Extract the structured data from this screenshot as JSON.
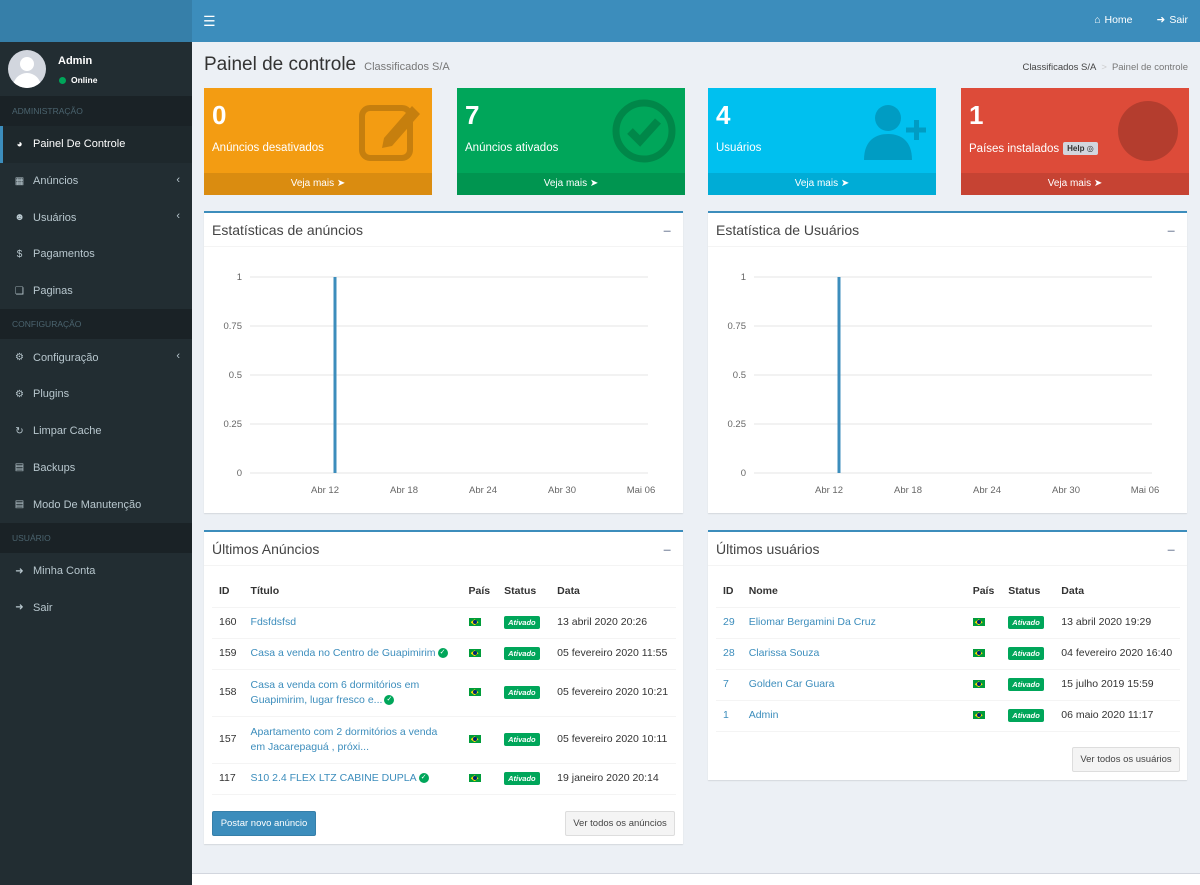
{
  "topbar": {
    "home_label": "Home",
    "exit_label": "Sair"
  },
  "user": {
    "name": "Admin",
    "status": "Online"
  },
  "sidebar": {
    "header_admin": "ADMINISTRAÇÃO",
    "header_config": "CONFIGURAÇÃO",
    "header_user": "USUÁRIO",
    "items": [
      {
        "label": "Painel De Controle",
        "icon": "dashboard-icon"
      },
      {
        "label": "Anúncios",
        "icon": "table-icon"
      },
      {
        "label": "Usuários",
        "icon": "users-icon"
      },
      {
        "label": "Pagamentos",
        "icon": "dollar-icon"
      },
      {
        "label": "Paginas",
        "icon": "pages-icon"
      },
      {
        "label": "Configuração",
        "icon": "gear-icon"
      },
      {
        "label": "Plugins",
        "icon": "gears-icon"
      },
      {
        "label": "Limpar Cache",
        "icon": "refresh-icon"
      },
      {
        "label": "Backups",
        "icon": "hdd-icon"
      },
      {
        "label": "Modo De Manutenção",
        "icon": "hdd-icon"
      },
      {
        "label": "Minha Conta",
        "icon": "sign-in-icon"
      },
      {
        "label": "Sair",
        "icon": "sign-out-icon"
      }
    ]
  },
  "header": {
    "title": "Painel de controle",
    "subtitle": "Classificados S/A",
    "breadcrumb_home": "Classificados S/A",
    "breadcrumb_current": "Painel de controle"
  },
  "stats": [
    {
      "value": "0",
      "label": "Anúncios desativados",
      "more": "Veja mais",
      "color": "#f39c12",
      "icon": "edit-icon"
    },
    {
      "value": "7",
      "label": "Anúncios ativados",
      "more": "Veja mais",
      "color": "#00a65a",
      "icon": "check-circle-icon"
    },
    {
      "value": "4",
      "label": "Usuários",
      "more": "Veja mais",
      "color": "#00c0ef",
      "icon": "user-plus-icon"
    },
    {
      "value": "1",
      "label": "Países instalados",
      "more": "Veja mais",
      "color": "#dd4b39",
      "icon": "globe-icon",
      "help": "Help"
    }
  ],
  "chart_ads_title": "Estatísticas de anúncios",
  "chart_users_title": "Estatística de Usuários",
  "chart_data": [
    {
      "type": "bar",
      "title": "Estatísticas de anúncios",
      "x": [
        "Abr 12",
        "Abr 18",
        "Abr 24",
        "Abr 30",
        "Mai 06"
      ],
      "yticks": [
        "1",
        "0.75",
        "0.5",
        "0.25",
        "0"
      ],
      "ylim": [
        0,
        1
      ],
      "points": [
        {
          "x": "Abr 12",
          "y": 1
        }
      ],
      "color": "#3c8dbc",
      "grid": true
    },
    {
      "type": "bar",
      "title": "Estatística de Usuários",
      "x": [
        "Abr 12",
        "Abr 18",
        "Abr 24",
        "Abr 30",
        "Mai 06"
      ],
      "yticks": [
        "1",
        "0.75",
        "0.5",
        "0.25",
        "0"
      ],
      "ylim": [
        0,
        1
      ],
      "points": [
        {
          "x": "Abr 12",
          "y": 1
        }
      ],
      "color": "#3c8dbc",
      "grid": true
    }
  ],
  "ads_table": {
    "title": "Últimos Anúncios",
    "headers": [
      "ID",
      "Título",
      "País",
      "Status",
      "Data"
    ],
    "rows": [
      {
        "id": "160",
        "title": "Fdsfdsfsd",
        "status": "Ativado",
        "date": "13 abril 2020 20:26"
      },
      {
        "id": "159",
        "title": "Casa a venda no Centro de Guapimirim",
        "status": "Ativado",
        "date": "05 fevereiro 2020 11:55"
      },
      {
        "id": "158",
        "title": "Casa a venda com 6 dormitórios em Guapimirim, lugar fresco e...",
        "status": "Ativado",
        "date": "05 fevereiro 2020 10:21"
      },
      {
        "id": "157",
        "title": "Apartamento com 2 dormitórios a venda em Jacarepaguá , próxi...",
        "status": "Ativado",
        "date": "05 fevereiro 2020 10:11"
      },
      {
        "id": "117",
        "title": "S10 2.4 FLEX LTZ CABINE DUPLA",
        "status": "Ativado",
        "date": "19 janeiro 2020 20:14"
      }
    ],
    "new_button": "Postar novo anúncio",
    "all_button": "Ver todos os anúncios"
  },
  "users_table": {
    "title": "Últimos usuários",
    "headers": [
      "ID",
      "Nome",
      "País",
      "Status",
      "Data"
    ],
    "rows": [
      {
        "id": "29",
        "name": "Eliomar Bergamini Da Cruz",
        "status": "Ativado",
        "date": "13 abril 2020 19:29"
      },
      {
        "id": "28",
        "name": "Clarissa Souza",
        "status": "Ativado",
        "date": "04 fevereiro 2020 16:40"
      },
      {
        "id": "7",
        "name": "Golden Car Guara",
        "status": "Ativado",
        "date": "15 julho 2019 15:59"
      },
      {
        "id": "1",
        "name": "Admin",
        "status": "Ativado",
        "date": "06 maio 2020 11:17"
      }
    ],
    "all_button": "Ver todos os usuários"
  }
}
